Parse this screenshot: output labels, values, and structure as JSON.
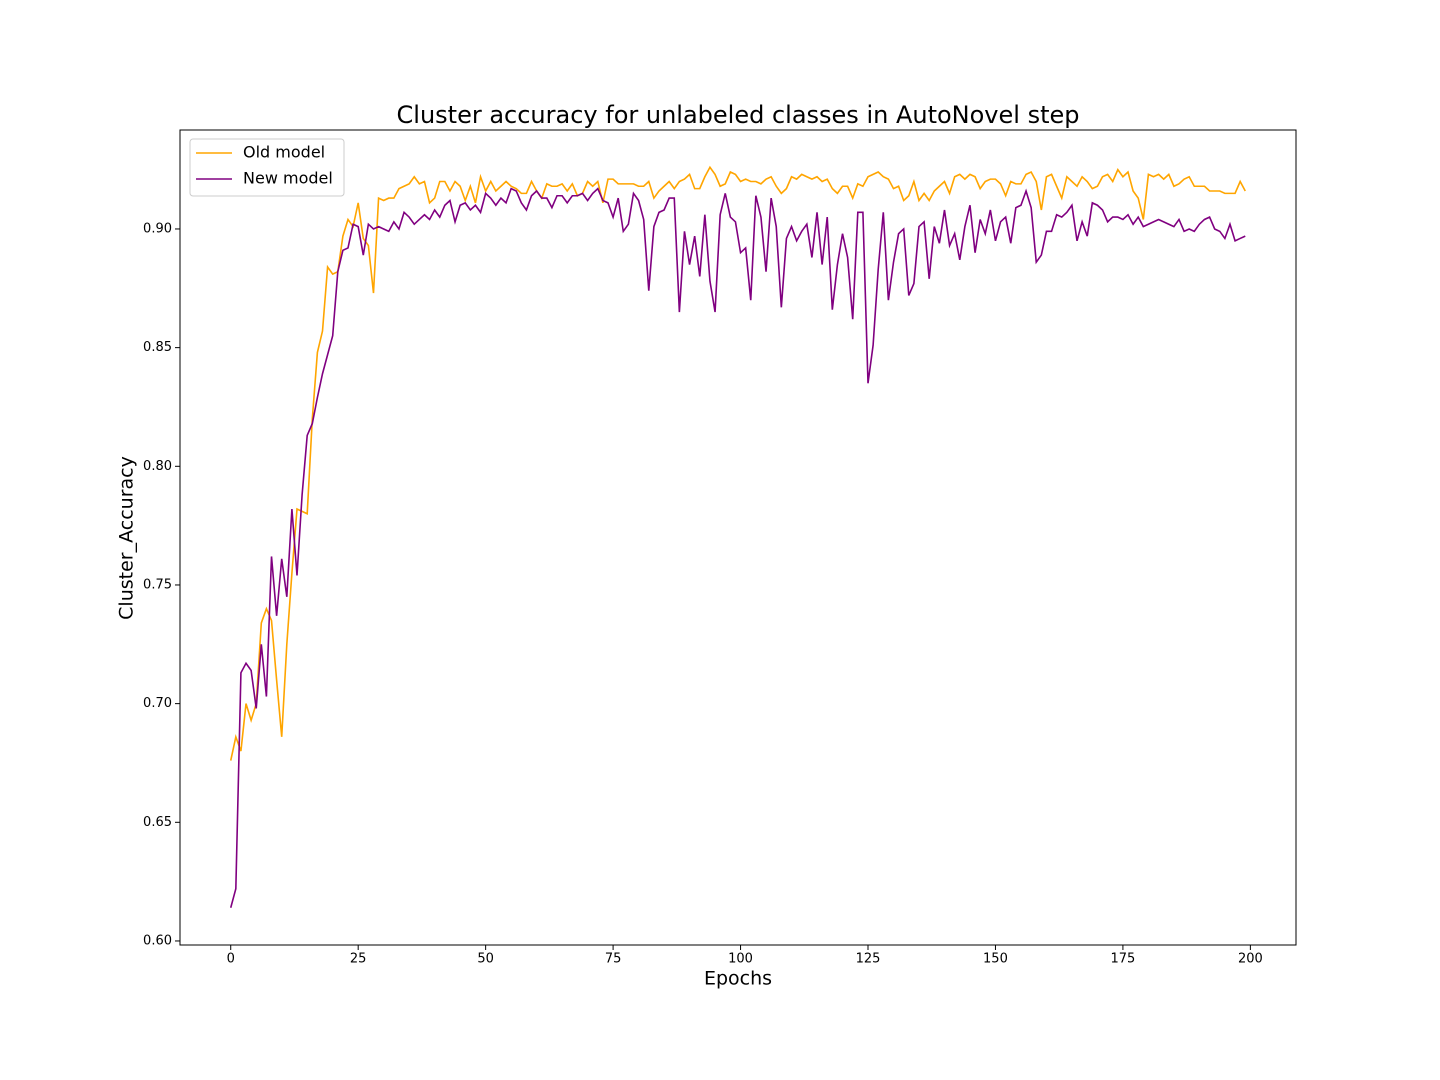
{
  "chart_data": {
    "type": "line",
    "title": "Cluster accuracy for unlabeled classes in AutoNovel step",
    "x_label": "Epochs",
    "y_label": "Cluster_Accuracy",
    "legend": "upper left",
    "xlim": [
      -9.95,
      208.95
    ],
    "ylim": [
      0.5983,
      0.9417
    ],
    "xticks": [
      0,
      25,
      50,
      75,
      100,
      125,
      150,
      175,
      200
    ],
    "yticks": [
      {
        "value": 0.6,
        "label": "0.60"
      },
      {
        "value": 0.65,
        "label": "0.65"
      },
      {
        "value": 0.7,
        "label": "0.70"
      },
      {
        "value": 0.75,
        "label": "0.75"
      },
      {
        "value": 0.8,
        "label": "0.80"
      },
      {
        "value": 0.85,
        "label": "0.85"
      },
      {
        "value": 0.9,
        "label": "0.90"
      }
    ],
    "x": [
      0,
      1,
      2,
      3,
      4,
      5,
      6,
      7,
      8,
      9,
      10,
      11,
      12,
      13,
      14,
      15,
      16,
      17,
      18,
      19,
      20,
      21,
      22,
      23,
      24,
      25,
      26,
      27,
      28,
      29,
      30,
      31,
      32,
      33,
      34,
      35,
      36,
      37,
      38,
      39,
      40,
      41,
      42,
      43,
      44,
      45,
      46,
      47,
      48,
      49,
      50,
      51,
      52,
      53,
      54,
      55,
      56,
      57,
      58,
      59,
      60,
      61,
      62,
      63,
      64,
      65,
      66,
      67,
      68,
      69,
      70,
      71,
      72,
      73,
      74,
      75,
      76,
      77,
      78,
      79,
      80,
      81,
      82,
      83,
      84,
      85,
      86,
      87,
      88,
      89,
      90,
      91,
      92,
      93,
      94,
      95,
      96,
      97,
      98,
      99,
      100,
      101,
      102,
      103,
      104,
      105,
      106,
      107,
      108,
      109,
      110,
      111,
      112,
      113,
      114,
      115,
      116,
      117,
      118,
      119,
      120,
      121,
      122,
      123,
      124,
      125,
      126,
      127,
      128,
      129,
      130,
      131,
      132,
      133,
      134,
      135,
      136,
      137,
      138,
      139,
      140,
      141,
      142,
      143,
      144,
      145,
      146,
      147,
      148,
      149,
      150,
      151,
      152,
      153,
      154,
      155,
      156,
      157,
      158,
      159,
      160,
      161,
      162,
      163,
      164,
      165,
      166,
      167,
      168,
      169,
      170,
      171,
      172,
      173,
      174,
      175,
      176,
      177,
      178,
      179,
      180,
      181,
      182,
      183,
      184,
      185,
      186,
      187,
      188,
      189,
      190,
      191,
      192,
      193,
      194,
      195,
      196,
      197,
      198,
      199
    ],
    "series": [
      {
        "name": "Old model",
        "color": "orange",
        "values": [
          0.676,
          0.686,
          0.68,
          0.7,
          0.693,
          0.7,
          0.734,
          0.74,
          0.735,
          0.71,
          0.686,
          0.725,
          0.755,
          0.782,
          0.781,
          0.78,
          0.82,
          0.848,
          0.857,
          0.884,
          0.881,
          0.882,
          0.897,
          0.904,
          0.901,
          0.911,
          0.896,
          0.893,
          0.873,
          0.913,
          0.912,
          0.913,
          0.913,
          0.917,
          0.918,
          0.919,
          0.922,
          0.919,
          0.92,
          0.911,
          0.913,
          0.92,
          0.92,
          0.916,
          0.92,
          0.918,
          0.912,
          0.918,
          0.911,
          0.922,
          0.916,
          0.92,
          0.916,
          0.918,
          0.92,
          0.918,
          0.917,
          0.915,
          0.915,
          0.92,
          0.916,
          0.913,
          0.919,
          0.918,
          0.918,
          0.919,
          0.916,
          0.919,
          0.914,
          0.915,
          0.92,
          0.918,
          0.92,
          0.911,
          0.921,
          0.921,
          0.919,
          0.919,
          0.919,
          0.919,
          0.918,
          0.918,
          0.92,
          0.913,
          0.916,
          0.918,
          0.92,
          0.917,
          0.92,
          0.921,
          0.923,
          0.917,
          0.917,
          0.922,
          0.926,
          0.923,
          0.918,
          0.919,
          0.924,
          0.923,
          0.92,
          0.921,
          0.92,
          0.92,
          0.919,
          0.921,
          0.922,
          0.918,
          0.915,
          0.917,
          0.922,
          0.921,
          0.923,
          0.922,
          0.921,
          0.922,
          0.92,
          0.921,
          0.917,
          0.915,
          0.918,
          0.918,
          0.913,
          0.919,
          0.918,
          0.922,
          0.923,
          0.924,
          0.922,
          0.921,
          0.917,
          0.918,
          0.912,
          0.914,
          0.92,
          0.912,
          0.915,
          0.912,
          0.916,
          0.918,
          0.92,
          0.915,
          0.922,
          0.923,
          0.921,
          0.923,
          0.922,
          0.917,
          0.92,
          0.921,
          0.921,
          0.919,
          0.914,
          0.92,
          0.919,
          0.919,
          0.923,
          0.924,
          0.92,
          0.908,
          0.922,
          0.923,
          0.918,
          0.913,
          0.922,
          0.92,
          0.918,
          0.922,
          0.92,
          0.917,
          0.918,
          0.922,
          0.923,
          0.92,
          0.925,
          0.922,
          0.924,
          0.916,
          0.913,
          0.904,
          0.923,
          0.922,
          0.923,
          0.921,
          0.923,
          0.918,
          0.919,
          0.921,
          0.922,
          0.918,
          0.918,
          0.918,
          0.916,
          0.916,
          0.916,
          0.915,
          0.915,
          0.915,
          0.92,
          0.916
        ]
      },
      {
        "name": "New model",
        "color": "purple",
        "values": [
          0.614,
          0.622,
          0.713,
          0.717,
          0.714,
          0.698,
          0.725,
          0.703,
          0.762,
          0.737,
          0.761,
          0.745,
          0.782,
          0.754,
          0.788,
          0.813,
          0.818,
          0.829,
          0.839,
          0.847,
          0.855,
          0.882,
          0.891,
          0.892,
          0.902,
          0.901,
          0.889,
          0.902,
          0.9,
          0.901,
          0.9,
          0.899,
          0.903,
          0.9,
          0.907,
          0.905,
          0.902,
          0.904,
          0.906,
          0.904,
          0.908,
          0.905,
          0.91,
          0.912,
          0.903,
          0.91,
          0.911,
          0.908,
          0.91,
          0.907,
          0.915,
          0.913,
          0.91,
          0.913,
          0.911,
          0.917,
          0.916,
          0.911,
          0.908,
          0.914,
          0.916,
          0.913,
          0.913,
          0.909,
          0.914,
          0.914,
          0.911,
          0.914,
          0.914,
          0.915,
          0.912,
          0.915,
          0.917,
          0.912,
          0.911,
          0.905,
          0.913,
          0.899,
          0.902,
          0.915,
          0.912,
          0.904,
          0.874,
          0.901,
          0.907,
          0.908,
          0.913,
          0.913,
          0.865,
          0.899,
          0.885,
          0.897,
          0.88,
          0.906,
          0.878,
          0.865,
          0.906,
          0.915,
          0.905,
          0.903,
          0.89,
          0.892,
          0.87,
          0.914,
          0.905,
          0.882,
          0.913,
          0.901,
          0.867,
          0.896,
          0.901,
          0.895,
          0.899,
          0.902,
          0.888,
          0.907,
          0.885,
          0.905,
          0.866,
          0.885,
          0.898,
          0.888,
          0.862,
          0.907,
          0.907,
          0.835,
          0.851,
          0.883,
          0.907,
          0.87,
          0.886,
          0.898,
          0.9,
          0.872,
          0.877,
          0.901,
          0.903,
          0.879,
          0.901,
          0.894,
          0.908,
          0.893,
          0.898,
          0.887,
          0.901,
          0.91,
          0.89,
          0.904,
          0.898,
          0.908,
          0.895,
          0.903,
          0.905,
          0.894,
          0.909,
          0.91,
          0.916,
          0.909,
          0.886,
          0.889,
          0.899,
          0.899,
          0.906,
          0.905,
          0.907,
          0.91,
          0.895,
          0.903,
          0.897,
          0.911,
          0.91,
          0.908,
          0.903,
          0.905,
          0.905,
          0.904,
          0.906,
          0.902,
          0.905,
          0.901,
          0.902,
          0.903,
          0.904,
          0.903,
          0.902,
          0.901,
          0.904,
          0.899,
          0.9,
          0.899,
          0.902,
          0.904,
          0.905,
          0.9,
          0.899,
          0.896,
          0.902,
          0.895,
          0.896,
          0.897
        ]
      }
    ]
  }
}
